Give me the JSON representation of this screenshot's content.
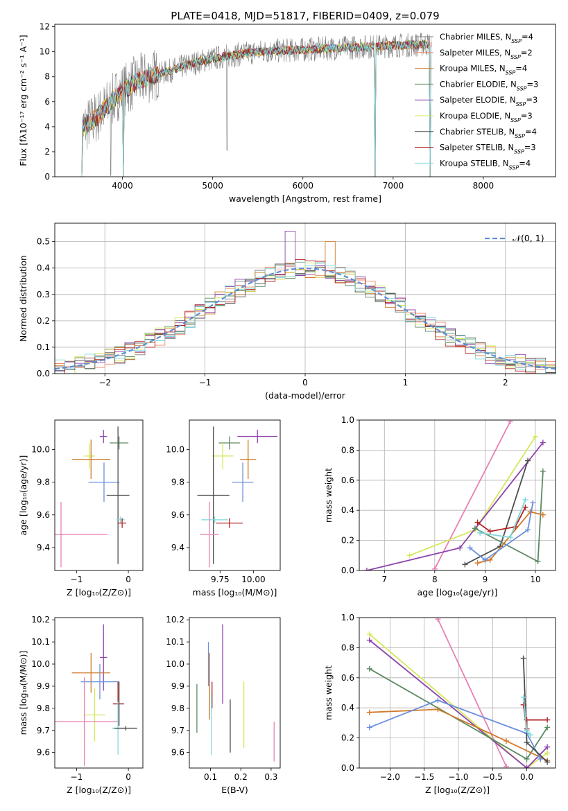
{
  "colors": {
    "Chabrier MILES": "#7f7f7f",
    "Salpeter MILES": "#f0896b",
    "Kroupa MILES": "#d07a2a",
    "Chabrier ELODIE": "#5c8a63",
    "Salpeter ELODIE": "#8e44ad",
    "Kroupa ELODIE": "#d4e85a",
    "Chabrier STELIB": "#4d4d4d",
    "Salpeter STELIB": "#b22222",
    "Kroupa STELIB": "#7fd8dc",
    "gaussian": "#5b8fd6",
    "pink": "#e87fb4",
    "blue": "#6b8fdc"
  },
  "chart_data": [
    {
      "id": "spectrum",
      "type": "line",
      "title": "PLATE=0418, MJD=51817, FIBERID=0409, z=0.079",
      "xlabel": "wavelength [Angstrom, rest frame]",
      "ylabel": "Flux [fλ10⁻¹⁷ erg cm⁻² s⁻¹ A⁻¹]",
      "xlim": [
        3250,
        8800
      ],
      "ylim": [
        0,
        12.2
      ],
      "xticks": [
        "4000",
        "5000",
        "6000",
        "7000",
        "8000"
      ],
      "yticks": [
        "0",
        "2",
        "4",
        "6",
        "8",
        "10",
        "12"
      ],
      "legend_position": "right",
      "legend": [
        {
          "label": "Chabrier MILES, N",
          "sub": "SSP",
          "tail": "=4"
        },
        {
          "label": "Salpeter MILES, N",
          "sub": "SSP",
          "tail": "=2"
        },
        {
          "label": "Kroupa MILES, N",
          "sub": "SSP",
          "tail": "=4"
        },
        {
          "label": "Chabrier ELODIE, N",
          "sub": "SSP",
          "tail": "=3"
        },
        {
          "label": "Salpeter ELODIE, N",
          "sub": "SSP",
          "tail": "=3"
        },
        {
          "label": "Kroupa ELODIE, N",
          "sub": "SSP",
          "tail": "=3"
        },
        {
          "label": "Chabrier STELIB, N",
          "sub": "SSP",
          "tail": "=4"
        },
        {
          "label": "Salpeter STELIB, N",
          "sub": "SSP",
          "tail": "=3"
        },
        {
          "label": "Kroupa STELIB, N",
          "sub": "SSP",
          "tail": "=4"
        }
      ],
      "continuum": [
        [
          3550,
          3.8
        ],
        [
          3650,
          4.4
        ],
        [
          3750,
          5.0
        ],
        [
          3850,
          5.8
        ],
        [
          3950,
          6.6
        ],
        [
          4050,
          7.1
        ],
        [
          4150,
          7.6
        ],
        [
          4300,
          8.0
        ],
        [
          4500,
          8.4
        ],
        [
          4700,
          8.9
        ],
        [
          4900,
          9.3
        ],
        [
          5100,
          9.6
        ],
        [
          5300,
          9.8
        ],
        [
          5500,
          10.0
        ],
        [
          5800,
          10.1
        ],
        [
          6100,
          10.2
        ],
        [
          6400,
          10.3
        ],
        [
          6700,
          10.4
        ],
        [
          7000,
          10.5
        ],
        [
          7400,
          10.6
        ]
      ],
      "absorption_dips": [
        [
          3545,
          0
        ],
        [
          3870,
          0.1
        ],
        [
          4010,
          0
        ],
        [
          5160,
          2.1
        ],
        [
          6800,
          0
        ],
        [
          7410,
          0
        ]
      ]
    },
    {
      "id": "residuals",
      "type": "histogram",
      "xlabel": "(data-model)/error",
      "ylabel": "Normed distribution",
      "xlim": [
        -2.5,
        2.5
      ],
      "ylim": [
        0,
        0.57
      ],
      "xticks": [
        "−2",
        "−1",
        "0",
        "1",
        "2"
      ],
      "yticks": [
        "0.0",
        "0.1",
        "0.2",
        "0.3",
        "0.4",
        "0.5"
      ],
      "bin_width": 0.1,
      "legend_label": "𝒩(0, 1)",
      "legend_position": "top-right"
    },
    {
      "id": "age-vs-Z",
      "type": "errorbar",
      "xlabel": "Z [log₁₀(Z/Z⊙)]",
      "ylabel": "age  [log₁₀(age/yr)]",
      "xlim": [
        -1.42,
        0.28
      ],
      "ylim": [
        9.26,
        10.18
      ],
      "xticks": [
        "−1",
        "0"
      ],
      "yticks": [
        "9.4",
        "9.6",
        "9.8",
        "10.0"
      ],
      "points": [
        {
          "c": "Salpeter ELODIE",
          "x": -0.48,
          "y": 10.08,
          "ex": 0.07,
          "ey": 0.04
        },
        {
          "c": "Chabrier ELODIE",
          "x": -0.18,
          "y": 10.04,
          "ex": 0.18,
          "ey": 0.04
        },
        {
          "c": "Kroupa ELODIE",
          "x": -0.75,
          "y": 9.96,
          "ex": 0.1,
          "ey": 0.08
        },
        {
          "c": "Kroupa MILES",
          "x": -0.72,
          "y": 9.94,
          "ex": 0.37,
          "ey": 0.12
        },
        {
          "c": "blue",
          "x": -0.47,
          "y": 9.8,
          "ex": 0.3,
          "ey": 0.12
        },
        {
          "c": "Chabrier STELIB",
          "x": -0.2,
          "y": 9.72,
          "ex": 0.22,
          "ey": 0.42
        },
        {
          "c": "Kroupa STELIB",
          "x": -0.15,
          "y": 9.57,
          "ex": 0.08,
          "ey": 0.02
        },
        {
          "c": "Salpeter STELIB",
          "x": -0.12,
          "y": 9.55,
          "ex": 0.08,
          "ey": 0.03
        },
        {
          "c": "pink",
          "x": -1.3,
          "y": 9.48,
          "ex": 0.9,
          "ey": 0.2
        }
      ]
    },
    {
      "id": "age-vs-mass",
      "type": "errorbar",
      "xlabel": "mass [log₁₀(M/M⊙)]",
      "ylabel": "",
      "xlim": [
        9.52,
        10.2
      ],
      "ylim": [
        9.26,
        10.18
      ],
      "xticks": [
        "9.75",
        "10.00"
      ],
      "yticks": [
        "9.4",
        "9.6",
        "9.8",
        "10.0"
      ],
      "points": [
        {
          "c": "Salpeter ELODIE",
          "x": 10.03,
          "y": 10.08,
          "ex": 0.15,
          "ey": 0.04
        },
        {
          "c": "Chabrier ELODIE",
          "x": 9.82,
          "y": 10.04,
          "ex": 0.08,
          "ey": 0.04
        },
        {
          "c": "Kroupa ELODIE",
          "x": 9.77,
          "y": 9.96,
          "ex": 0.08,
          "ey": 0.08
        },
        {
          "c": "Kroupa MILES",
          "x": 9.96,
          "y": 9.94,
          "ex": 0.06,
          "ey": 0.12
        },
        {
          "c": "blue",
          "x": 9.92,
          "y": 9.8,
          "ex": 0.08,
          "ey": 0.12
        },
        {
          "c": "Chabrier STELIB",
          "x": 9.7,
          "y": 9.72,
          "ex": 0.12,
          "ey": 0.42
        },
        {
          "c": "Kroupa STELIB",
          "x": 9.71,
          "y": 9.57,
          "ex": 0.1,
          "ey": 0.02
        },
        {
          "c": "Salpeter STELIB",
          "x": 9.82,
          "y": 9.55,
          "ex": 0.1,
          "ey": 0.03
        },
        {
          "c": "pink",
          "x": 9.67,
          "y": 9.48,
          "ex": 0.07,
          "ey": 0.2
        }
      ]
    },
    {
      "id": "weight-vs-age",
      "type": "line",
      "xlabel": "age  [log₁₀(age/yr)]",
      "ylabel": "mass weight",
      "xlim": [
        6.5,
        10.4
      ],
      "ylim": [
        0,
        1
      ],
      "xticks": [
        "7",
        "8",
        "9",
        "10"
      ],
      "yticks": [
        "0.0",
        "0.2",
        "0.4",
        "0.6",
        "0.8",
        "1.0"
      ],
      "series": [
        {
          "c": "pink",
          "points": [
            [
              8.0,
              0.01
            ],
            [
              9.5,
              0.99
            ]
          ]
        },
        {
          "c": "Kroupa ELODIE",
          "points": [
            [
              7.5,
              0.1
            ],
            [
              8.8,
              0.27
            ],
            [
              10.0,
              0.89
            ]
          ]
        },
        {
          "c": "Salpeter ELODIE",
          "points": [
            [
              6.65,
              0.0
            ],
            [
              8.5,
              0.15
            ],
            [
              10.15,
              0.85
            ]
          ]
        },
        {
          "c": "Chabrier STELIB",
          "points": [
            [
              8.6,
              0.04
            ],
            [
              9.3,
              0.16
            ],
            [
              9.85,
              0.73
            ]
          ]
        },
        {
          "c": "Chabrier ELODIE",
          "points": [
            [
              8.8,
              0.28
            ],
            [
              10.05,
              0.06
            ],
            [
              10.15,
              0.66
            ]
          ]
        },
        {
          "c": "Kroupa MILES",
          "points": [
            [
              8.85,
              0.05
            ],
            [
              9.1,
              0.07
            ],
            [
              9.9,
              0.39
            ],
            [
              10.15,
              0.37
            ]
          ]
        },
        {
          "c": "blue",
          "points": [
            [
              8.7,
              0.15
            ],
            [
              9.0,
              0.07
            ],
            [
              9.85,
              0.27
            ],
            [
              9.95,
              0.45
            ]
          ]
        },
        {
          "c": "Salpeter STELIB",
          "points": [
            [
              8.85,
              0.32
            ],
            [
              9.1,
              0.26
            ],
            [
              9.6,
              0.29
            ],
            [
              9.8,
              0.42
            ]
          ]
        },
        {
          "c": "Kroupa STELIB",
          "points": [
            [
              8.9,
              0.25
            ],
            [
              9.5,
              0.22
            ],
            [
              9.8,
              0.47
            ]
          ]
        }
      ]
    },
    {
      "id": "mass-vs-Z",
      "type": "errorbar",
      "xlabel": "Z [log₁₀(Z/Z⊙)]",
      "ylabel": "mass [log₁₀(M/M⊙)]",
      "xlim": [
        -1.42,
        0.28
      ],
      "ylim": [
        9.53,
        10.21
      ],
      "xticks": [
        "−1",
        "0"
      ],
      "yticks": [
        "9.6",
        "9.7",
        "9.8",
        "9.9",
        "10.0",
        "10.1",
        "10.2"
      ],
      "points": [
        {
          "c": "Salpeter ELODIE",
          "x": -0.48,
          "y": 10.03,
          "ex": 0.07,
          "ey": 0.15
        },
        {
          "c": "Kroupa MILES",
          "x": -0.72,
          "y": 9.96,
          "ex": 0.37,
          "ey": 0.09
        },
        {
          "c": "blue",
          "x": -0.55,
          "y": 9.92,
          "ex": 0.37,
          "ey": 0.08
        },
        {
          "c": "Chabrier STELIB",
          "x": -0.18,
          "y": 9.82,
          "ex": 0.1,
          "ey": 0.1
        },
        {
          "c": "Salpeter STELIB",
          "x": -0.2,
          "y": 9.82,
          "ex": 0.1,
          "ey": 0.1
        },
        {
          "c": "Kroupa ELODIE",
          "x": -0.65,
          "y": 9.77,
          "ex": 0.2,
          "ey": 0.12
        },
        {
          "c": "pink",
          "x": -0.85,
          "y": 9.74,
          "ex": 0.65,
          "ey": 0.2
        },
        {
          "c": "Kroupa STELIB",
          "x": -0.2,
          "y": 9.71,
          "ex": 0.12,
          "ey": 0.12
        },
        {
          "c": "Chabrier STELIB",
          "x": -0.05,
          "y": 9.71,
          "ex": 0.22,
          "ey": 0.01
        }
      ]
    },
    {
      "id": "mass-vs-EBV",
      "type": "errorbar",
      "xlabel": "E(B-V)",
      "ylabel": "",
      "xlim": [
        0.03,
        0.33
      ],
      "ylim": [
        9.53,
        10.21
      ],
      "xticks": [
        "0.1",
        "0.2",
        "0.3"
      ],
      "yticks": [
        "9.6",
        "9.7",
        "9.8",
        "9.9",
        "10.0",
        "10.1",
        "10.2"
      ],
      "points": [
        {
          "c": "Salpeter ELODIE",
          "x": 0.14,
          "y": 10.0,
          "ey": 0.18
        },
        {
          "c": "blue",
          "x": 0.093,
          "y": 10.0,
          "ey": 0.1
        },
        {
          "c": "Kroupa MILES",
          "x": 0.097,
          "y": 9.9,
          "ey": 0.15
        },
        {
          "c": "Salpeter STELIB",
          "x": 0.105,
          "y": 9.86,
          "ey": 0.06
        },
        {
          "c": "Chabrier ELODIE",
          "x": 0.055,
          "y": 9.8,
          "ey": 0.11
        },
        {
          "c": "Chabrier STELIB",
          "x": 0.165,
          "y": 9.72,
          "ey": 0.12
        },
        {
          "c": "Kroupa ELODIE",
          "x": 0.21,
          "y": 9.77,
          "ey": 0.15
        },
        {
          "c": "Kroupa STELIB",
          "x": 0.103,
          "y": 9.73,
          "ey": 0.14
        },
        {
          "c": "pink",
          "x": 0.31,
          "y": 9.65,
          "ey": 0.09
        }
      ]
    },
    {
      "id": "weight-vs-Z",
      "type": "line",
      "xlabel": "Z [log₁₀(Z/Z⊙)]",
      "ylabel": "mass weight",
      "xlim": [
        -2.45,
        0.42
      ],
      "ylim": [
        0,
        1
      ],
      "xticks": [
        "−2.0",
        "−1.5",
        "−1.0",
        "−0.5",
        "0.0"
      ],
      "yticks": [
        "0.0",
        "0.2",
        "0.4",
        "0.6",
        "0.8",
        "1.0"
      ],
      "series": [
        {
          "c": "pink",
          "points": [
            [
              -1.3,
              0.99
            ],
            [
              -0.3,
              0.01
            ]
          ]
        },
        {
          "c": "Kroupa ELODIE",
          "points": [
            [
              -2.3,
              0.89
            ],
            [
              0.0,
              0.0
            ],
            [
              0.3,
              0.1
            ]
          ]
        },
        {
          "c": "Salpeter ELODIE",
          "points": [
            [
              -2.3,
              0.85
            ],
            [
              0.0,
              0.0
            ],
            [
              0.3,
              0.14
            ]
          ]
        },
        {
          "c": "Chabrier ELODIE",
          "points": [
            [
              -2.3,
              0.66
            ],
            [
              0.0,
              0.06
            ],
            [
              0.3,
              0.27
            ]
          ]
        },
        {
          "c": "Kroupa MILES",
          "points": [
            [
              -2.3,
              0.37
            ],
            [
              -1.3,
              0.39
            ],
            [
              -0.3,
              0.18
            ],
            [
              0.3,
              0.05
            ]
          ]
        },
        {
          "c": "blue",
          "points": [
            [
              -2.3,
              0.27
            ],
            [
              -1.3,
              0.45
            ],
            [
              0.0,
              0.23
            ],
            [
              0.2,
              0.06
            ]
          ]
        },
        {
          "c": "Chabrier STELIB",
          "points": [
            [
              -0.05,
              0.73
            ],
            [
              0.0,
              0.17
            ],
            [
              0.3,
              0.04
            ]
          ]
        },
        {
          "c": "Salpeter STELIB",
          "points": [
            [
              -0.05,
              0.42
            ],
            [
              0.0,
              0.26
            ],
            [
              0.0,
              0.32
            ],
            [
              0.3,
              0.32
            ]
          ]
        },
        {
          "c": "Kroupa STELIB",
          "points": [
            [
              -0.05,
              0.47
            ],
            [
              0.0,
              0.25
            ],
            [
              0.05,
              0.22
            ]
          ]
        }
      ]
    }
  ]
}
